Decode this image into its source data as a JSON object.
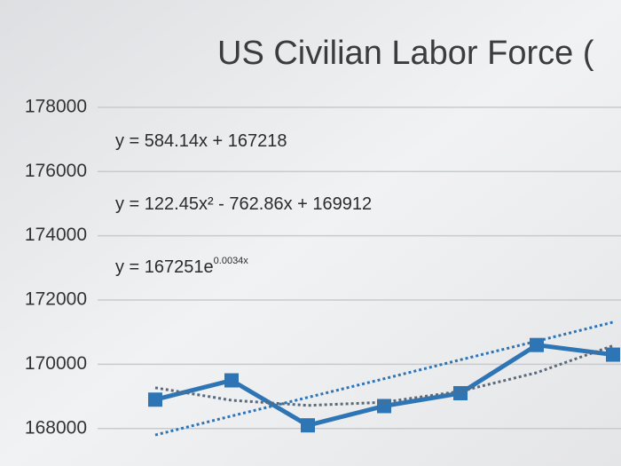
{
  "chart_data": {
    "type": "line",
    "title": "US Civilian Labor Force (",
    "categories": [
      null,
      null,
      null,
      null,
      null,
      null,
      null
    ],
    "series": [
      {
        "color": "#2e75b6",
        "style": "solid",
        "marker": "square",
        "values": [
          168900,
          169500,
          168100,
          168700,
          169100,
          170600,
          170300
        ]
      },
      {
        "color": "#2e75b6",
        "style": "dotted",
        "values": [
          167800,
          168390,
          168970,
          169550,
          170140,
          170720,
          171310
        ]
      },
      {
        "color": "#5a6a7a",
        "style": "dotted",
        "values": [
          169270,
          168880,
          168720,
          168820,
          169160,
          169740,
          170580
        ]
      }
    ],
    "annotations": [
      {
        "text": "y = 584.14x + 167218"
      },
      {
        "text": "y = 122.45x² - 762.86x + 169912"
      },
      {
        "text": "y = 167251e",
        "superscript": "0.0034x"
      }
    ],
    "ylim": [
      167000,
      178300
    ],
    "yticks": [
      168000,
      170000,
      172000,
      174000,
      176000,
      178000
    ],
    "grid": true
  }
}
